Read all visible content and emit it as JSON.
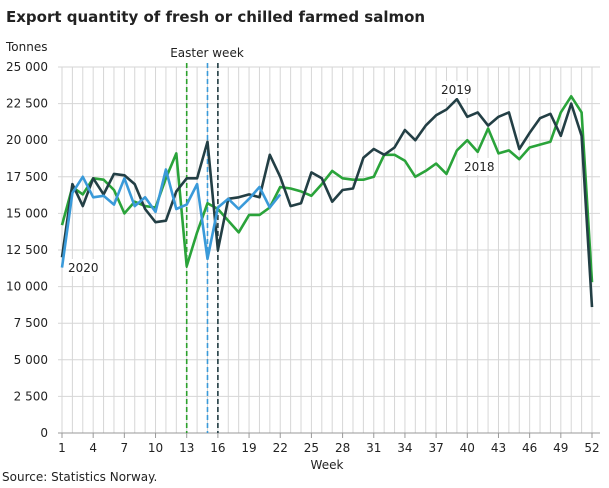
{
  "chart_data": {
    "type": "line",
    "title": "Export quantity of fresh or chilled farmed salmon",
    "ylabel": "Tonnes",
    "xlabel": "Week",
    "source": "Source: Statistics Norway.",
    "ylim": [
      0,
      25000
    ],
    "yticks": [
      0,
      2500,
      5000,
      7500,
      10000,
      12500,
      15000,
      17500,
      20000,
      22500,
      25000
    ],
    "ytick_labels": [
      "0",
      "2 500",
      "5 000",
      "7 500",
      "10 000",
      "12 500",
      "15 000",
      "17 500",
      "20 000",
      "22 500",
      "25 000"
    ],
    "xlim": [
      1,
      52
    ],
    "xticks": [
      1,
      4,
      7,
      10,
      13,
      16,
      19,
      22,
      25,
      28,
      31,
      34,
      37,
      40,
      43,
      46,
      49,
      52
    ],
    "grid": true,
    "annotation": {
      "label": "Easter week",
      "weeks": [
        13,
        15,
        16
      ],
      "colors": [
        "#2ca02c",
        "#3a9ad9",
        "#1e3a40"
      ]
    },
    "series": [
      {
        "name": "2018",
        "color": "#2aa33a",
        "start_week": 1,
        "values": [
          14200,
          16800,
          16300,
          17400,
          17300,
          16600,
          15000,
          15800,
          15500,
          15400,
          17400,
          19100,
          11400,
          13700,
          15700,
          15300,
          14500,
          13700,
          14900,
          14900,
          15400,
          16800,
          16700,
          16500,
          16200,
          17000,
          17900,
          17400,
          17300,
          17300,
          17500,
          19000,
          19000,
          18600,
          17500,
          17900,
          18400,
          17700,
          19300,
          20000,
          19200,
          20800,
          19100,
          19300,
          18700,
          19500,
          19700,
          19900,
          21900,
          23000,
          21900,
          10300
        ]
      },
      {
        "name": "2019",
        "color": "#233f45",
        "start_week": 1,
        "values": [
          12000,
          17000,
          15500,
          17400,
          16300,
          17700,
          17600,
          17000,
          15300,
          14400,
          14500,
          16500,
          17400,
          17400,
          19900,
          12500,
          16000,
          16100,
          16300,
          16100,
          19000,
          17500,
          15500,
          15700,
          17800,
          17400,
          15800,
          16600,
          16700,
          18800,
          19400,
          19000,
          19500,
          20700,
          20000,
          21000,
          21700,
          22100,
          22800,
          21600,
          21900,
          21000,
          21600,
          21900,
          19400,
          20500,
          21500,
          21800,
          20300,
          22500,
          20300,
          8600
        ]
      },
      {
        "name": "2020",
        "color": "#3a9ad9",
        "start_week": 1,
        "values": [
          11300,
          16400,
          17500,
          16100,
          16200,
          15600,
          17400,
          15500,
          16100,
          15100,
          18000,
          15300,
          15600,
          17000,
          11900,
          15400,
          16000,
          15300,
          16000,
          16800,
          15400,
          16300
        ]
      }
    ]
  }
}
